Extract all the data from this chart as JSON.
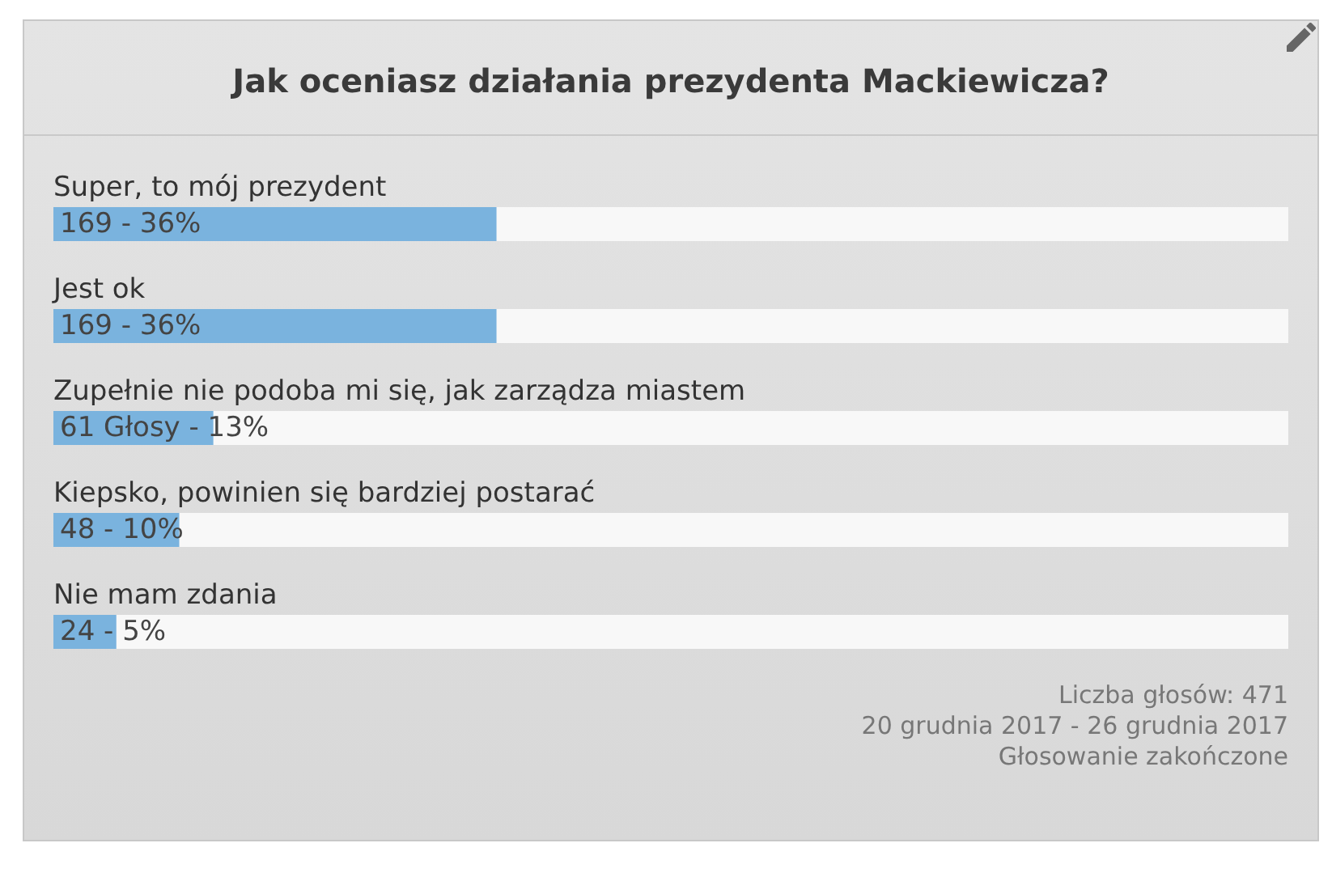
{
  "chart_data": {
    "type": "bar",
    "orientation": "horizontal",
    "title": "Jak oceniasz działania prezydenta Mackiewicza?",
    "categories": [
      "Super, to mój prezydent",
      "Jest ok",
      "Zupełnie nie podoba mi się, jak zarządza miastem",
      "Kiepsko, powinien się bardziej postarać",
      "Nie mam zdania"
    ],
    "values": [
      169,
      169,
      61,
      48,
      24
    ],
    "color": "#7ab3de",
    "value_labels": [
      "169 - 36%",
      "169 - 36%",
      "61 Głosy - 13%",
      "48 - 10%",
      "24 - 5%"
    ],
    "xlim": [
      0,
      471
    ],
    "tick_labels": "y",
    "annotations": [
      "Liczba głosów: 471",
      "20 grudnia 2017 - 26 grudnia 2017",
      "Głosowanie zakończone"
    ]
  }
}
